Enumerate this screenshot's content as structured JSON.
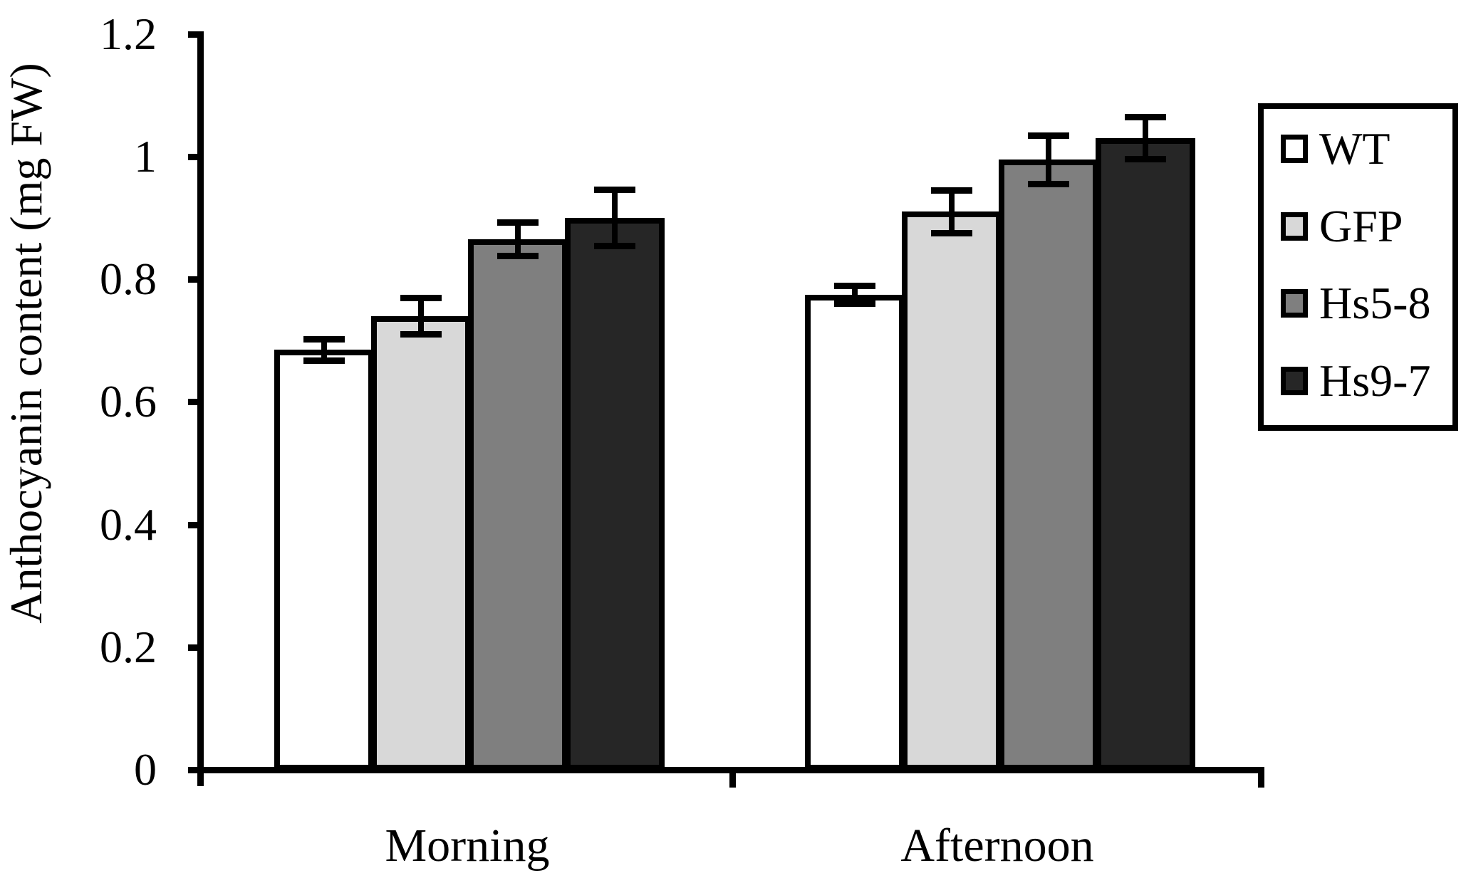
{
  "chart_data": {
    "type": "bar",
    "title": "",
    "xlabel": "",
    "ylabel": "Anthocyanin content (mg FW)",
    "categories": [
      "Morning",
      "Afternoon"
    ],
    "series": [
      {
        "name": "WT",
        "color": "#ffffff",
        "values": [
          0.685,
          0.775
        ],
        "errors": [
          0.018,
          0.015
        ]
      },
      {
        "name": "GFP",
        "color": "#d8d8d8",
        "values": [
          0.74,
          0.91
        ],
        "errors": [
          0.03,
          0.035
        ]
      },
      {
        "name": "Hs5-8",
        "color": "#7f7f7f",
        "values": [
          0.865,
          0.995
        ],
        "errors": [
          0.028,
          0.04
        ]
      },
      {
        "name": "Hs9-7",
        "color": "#262626",
        "values": [
          0.9,
          1.03
        ],
        "errors": [
          0.046,
          0.035
        ]
      }
    ],
    "ylim": [
      0,
      1.2
    ],
    "yticks": [
      0,
      0.2,
      0.4,
      0.6,
      0.8,
      1,
      1.2
    ],
    "ytick_labels": [
      "0",
      "0.2",
      "0.4",
      "0.6",
      "0.8",
      "1",
      "1.2"
    ],
    "grid": false,
    "legend_position": "right",
    "bar_edge_color": "#000000",
    "error_bar_color": "#000000"
  }
}
